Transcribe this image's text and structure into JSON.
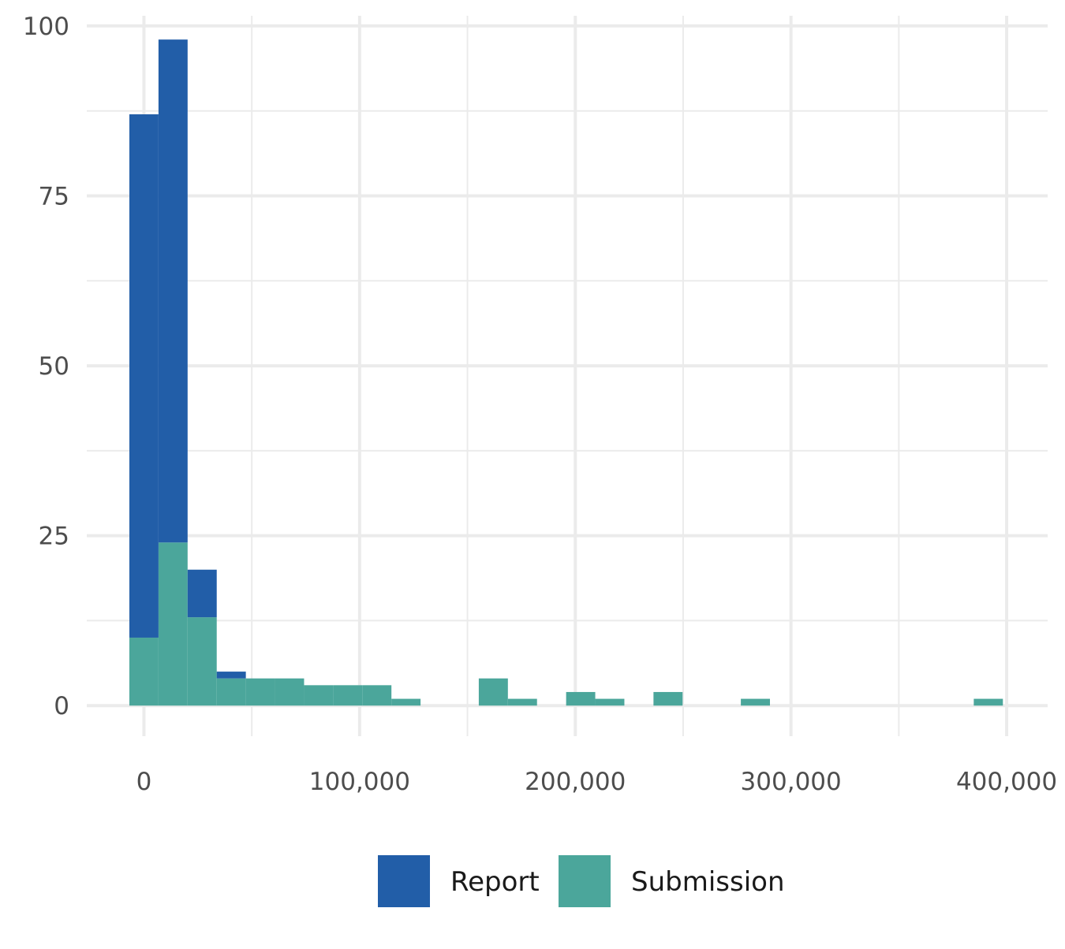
{
  "chart_data": {
    "type": "bar",
    "title": "",
    "xlabel": "",
    "ylabel": "",
    "bin_width": 13500,
    "bin_starts": [
      -6750,
      6750,
      20250,
      33750,
      47250,
      60750,
      74250,
      87750,
      101250,
      114750,
      155250,
      168750,
      195750,
      209250,
      236250,
      276750,
      384750
    ],
    "series": [
      {
        "name": "Report",
        "color": "#225ea8",
        "values": [
          77,
          74,
          7,
          1,
          0,
          0,
          0,
          0,
          0,
          0,
          0,
          0,
          0,
          0,
          0,
          0,
          0
        ]
      },
      {
        "name": "Submission",
        "color": "#4ba69b",
        "values": [
          10,
          24,
          13,
          4,
          4,
          4,
          3,
          3,
          3,
          1,
          4,
          1,
          2,
          1,
          2,
          1,
          1
        ]
      }
    ],
    "stacked": true,
    "xlim": [
      -26500,
      419000
    ],
    "ylim": [
      -4.5,
      101.5
    ],
    "x_ticks": [
      0,
      100000,
      200000,
      300000,
      400000
    ],
    "x_tick_labels": [
      "0",
      "100,000",
      "200,000",
      "300,000",
      "400,000"
    ],
    "y_ticks": [
      0,
      25,
      50,
      75,
      100
    ],
    "y_tick_labels": [
      "0",
      "25",
      "50",
      "75",
      "100"
    ],
    "x_minor_ticks": [
      50000,
      150000,
      250000,
      350000
    ],
    "y_minor_ticks": [
      12.5,
      37.5,
      62.5,
      87.5
    ],
    "grid": true,
    "gridline_color": "#ebebeb",
    "legend": {
      "position": "bottom",
      "entries": [
        "Report",
        "Submission"
      ]
    }
  }
}
